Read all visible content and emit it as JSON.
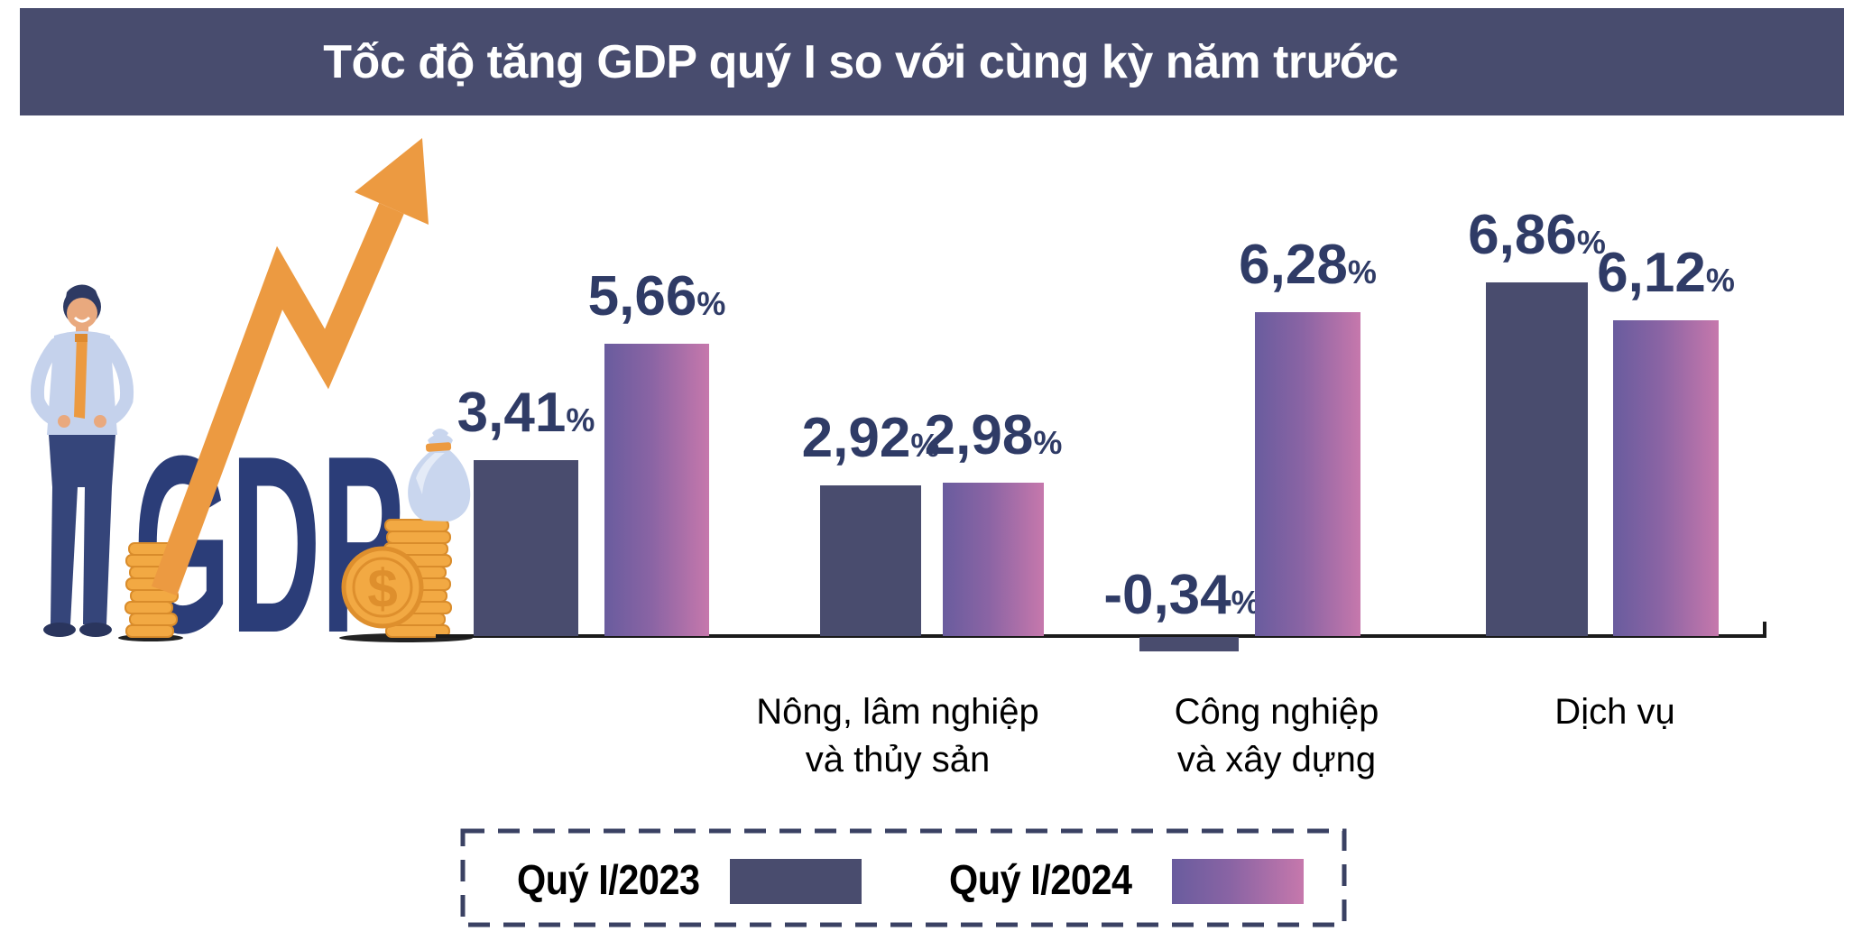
{
  "title": "Tốc độ tăng GDP quý I so với cùng kỳ năm trước",
  "colors": {
    "title_bar_bg": "#484C6E",
    "title_text": "#FFFFFF",
    "bar_2023": "#494C6E",
    "bar_2024_gradient_start": "#695C9E",
    "bar_2024_gradient_end": "#C678AC",
    "value_label": "#2F3B66",
    "category_label": "#000000",
    "axis": "#1A1A1A",
    "legend_border": "#3A4163",
    "arrow_orange": "#EC9A41",
    "gdp_navy": "#2B3D78",
    "coin_gold": "#F2A943"
  },
  "illustration": {
    "gdp_text": "GDP",
    "dollar_sign": "$"
  },
  "legend": {
    "items": [
      {
        "label": "Quý I/2023",
        "swatch": "solid"
      },
      {
        "label": "Quý I/2024",
        "swatch": "gradient"
      }
    ]
  },
  "chart_data": {
    "type": "bar",
    "title": "Tốc độ tăng GDP quý I so với cùng kỳ năm trước",
    "unit": "%",
    "decimal_separator": ",",
    "categories": [
      "GDP",
      "Nông, lâm nghiệp và thủy sản",
      "Công nghiệp và xây dựng",
      "Dịch vụ"
    ],
    "category_labels": [
      [],
      [
        "Nông, lâm nghiệp",
        "và thủy sản"
      ],
      [
        "Công nghiệp",
        "và xây dựng"
      ],
      [
        "Dịch vụ"
      ]
    ],
    "series": [
      {
        "name": "Quý I/2023",
        "values": [
          3.41,
          2.92,
          -0.34,
          6.86
        ],
        "display": [
          "3,41",
          "2,92",
          "-0,34",
          "6,86"
        ]
      },
      {
        "name": "Quý I/2024",
        "values": [
          5.66,
          2.98,
          6.28,
          6.12
        ],
        "display": [
          "5,66",
          "2,98",
          "6,28",
          "6,12"
        ]
      }
    ],
    "ylim": [
      -0.5,
      7.2
    ],
    "grid": false,
    "legend_position": "bottom"
  }
}
